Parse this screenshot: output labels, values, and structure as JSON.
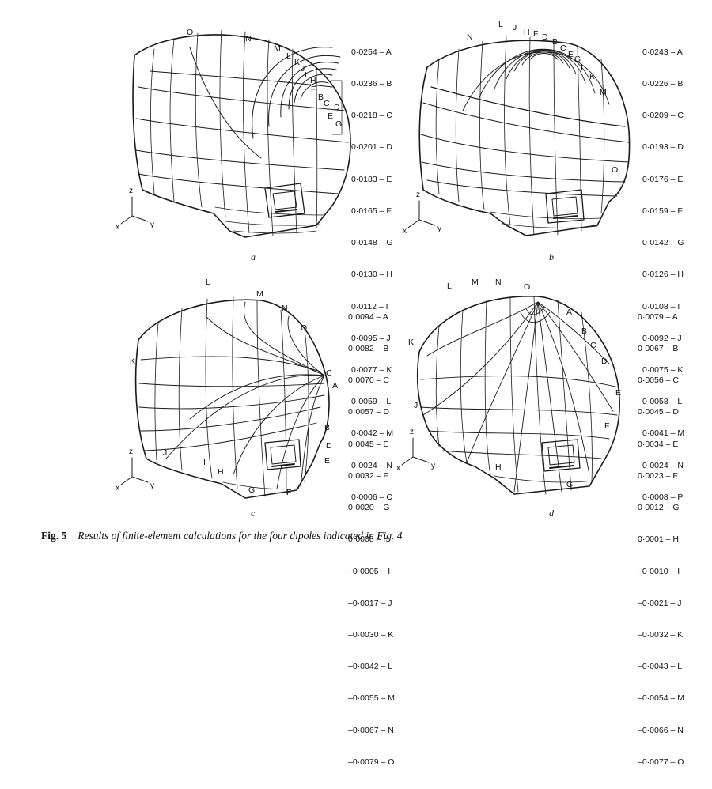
{
  "figure": {
    "fig_label": "Fig. 5",
    "caption": "Results of finite-element calculations for the four dipoles indicated in Fig. 4"
  },
  "axes_labels": {
    "z": "z",
    "x": "x",
    "y": "y"
  },
  "panels": [
    {
      "id": "a",
      "letter": "a",
      "legend": [
        "0·0254 – A",
        "0·0236 – B",
        "0·0218 – C",
        "0·0201 – D",
        "0·0183 – E",
        "0·0165 – F",
        "0·0148 – G",
        "0·0130 – H",
        "0·0112 – I",
        "0·0095 – J",
        "0·0077 – K",
        "0·0059 – L",
        "0·0042 – M",
        "0·0024 – N",
        "0·0006 – O"
      ],
      "contour_labels": [
        "O",
        "N",
        "M",
        "L",
        "K",
        "J",
        "I",
        "H",
        "F",
        "B",
        "C",
        "D",
        "E",
        "G"
      ]
    },
    {
      "id": "b",
      "letter": "b",
      "legend": [
        "0·0243 – A",
        "0·0226 – B",
        "0·0209 – C",
        "0·0193 – D",
        "0·0176 – E",
        "0·0159 – F",
        "0·0142 – G",
        "0·0126 – H",
        "0·0108 – I",
        "0·0092 – J",
        "0·0075 – K",
        "0·0058 – L",
        "0·0041 – M",
        "0·0024 – N",
        "0·0008 – P"
      ],
      "contour_labels": [
        "N",
        "L",
        "J",
        "H",
        "F",
        "D",
        "B",
        "C",
        "E",
        "G",
        "I",
        "K",
        "M",
        "O"
      ]
    },
    {
      "id": "c",
      "letter": "c",
      "legend": [
        "0·0094 – A",
        "0·0082 – B",
        "0·0070 – C",
        "0·0057 – D",
        "0·0045 – E",
        "0·0032 – F",
        "0·0020 – G",
        "0·0008 – H",
        "–0·0005 – I",
        "–0·0017 – J",
        "–0·0030 – K",
        "–0·0042 – L",
        "–0·0055 – M",
        "–0·0067 – N",
        "–0·0079 – O"
      ],
      "contour_labels": [
        "L",
        "M",
        "N",
        "O",
        "K",
        "C",
        "A",
        "B",
        "D",
        "E",
        "F",
        "G",
        "H",
        "I",
        "J"
      ]
    },
    {
      "id": "d",
      "letter": "d",
      "legend": [
        "0·0079 – A",
        "0·0067 – B",
        "0·0056 – C",
        "0·0045 – D",
        "0·0034 – E",
        "0·0023 – F",
        "0·0012 – G",
        "0·0001 – H",
        "–0·0010 – I",
        "–0·0021 – J",
        "–0·0032 – K",
        "–0·0043 – L",
        "–0·0054 – M",
        "–0·0066 – N",
        "–0·0077 – O"
      ],
      "contour_labels": [
        "L",
        "M",
        "N",
        "O",
        "A",
        "B",
        "C",
        "D",
        "E",
        "F",
        "G",
        "H",
        "I",
        "J",
        "K"
      ]
    }
  ]
}
